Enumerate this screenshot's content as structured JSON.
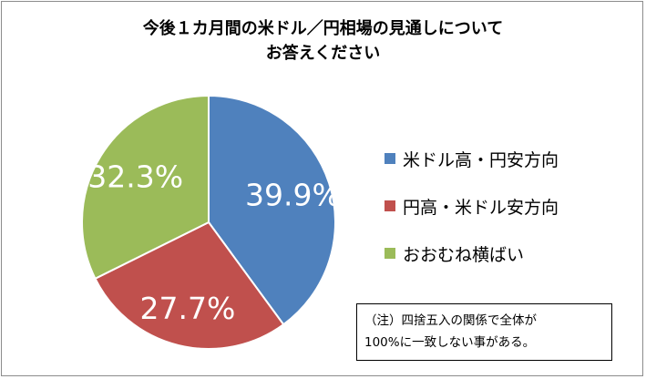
{
  "title_lines": [
    "今後１カ月間の米ドル／円相場の見通しについて",
    "お答えください"
  ],
  "chart_data": {
    "type": "pie",
    "title": "今後１カ月間の米ドル／円相場の見通しについてお答えください",
    "slices": [
      {
        "label": "米ドル高・円安方向",
        "value": 39.9,
        "display": "39.9%",
        "color": "#4f81bd"
      },
      {
        "label": "円高・米ドル安方向",
        "value": 27.7,
        "display": "27.7%",
        "color": "#c0504d"
      },
      {
        "label": "おおむね横ばい",
        "value": 32.3,
        "display": "32.3%",
        "color": "#9bbb59"
      }
    ],
    "legend_position": "right",
    "start": "12 o'clock, clockwise"
  },
  "note_lines": [
    "（注）四捨五入の関係で全体が",
    "100%に一致しない事がある。"
  ]
}
